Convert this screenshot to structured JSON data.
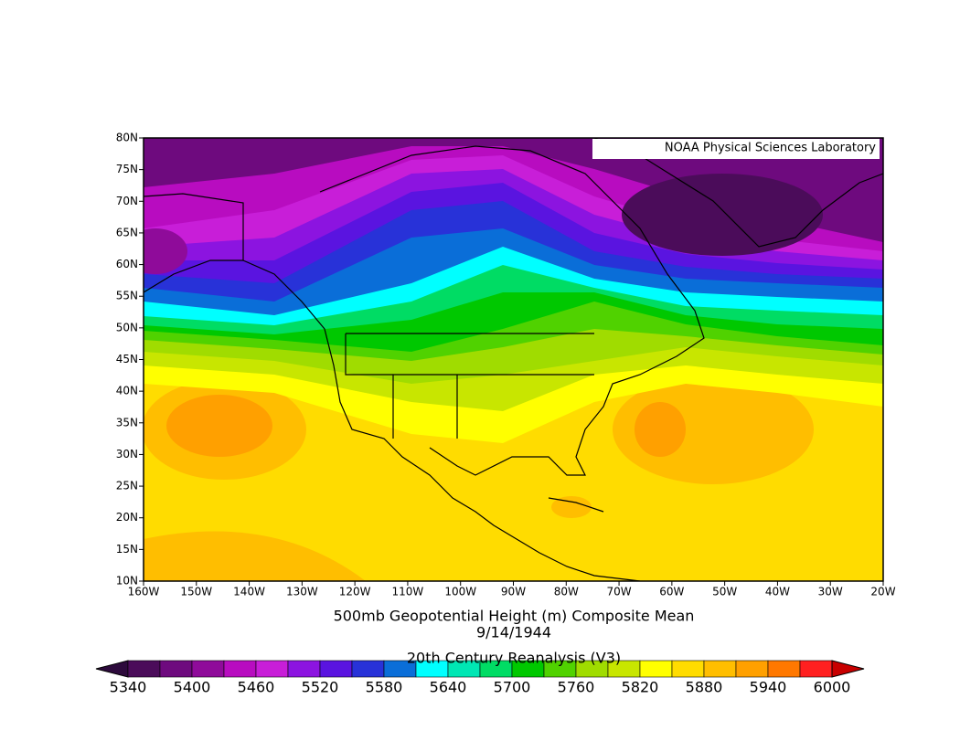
{
  "map": {
    "title": "500mb Geopotential Height (m) Composite Mean",
    "date": "9/14/1944",
    "source": "20th Century Reanalysis (V3)",
    "credit": "NOAA Physical Sciences Laboratory",
    "lat_ticks": [
      "10N",
      "15N",
      "20N",
      "25N",
      "30N",
      "35N",
      "40N",
      "45N",
      "50N",
      "55N",
      "60N",
      "65N",
      "70N",
      "75N",
      "80N"
    ],
    "lon_ticks": [
      "160W",
      "150W",
      "140W",
      "130W",
      "120W",
      "110W",
      "100W",
      "90W",
      "80W",
      "70W",
      "60W",
      "50W",
      "40W",
      "30W",
      "20W"
    ],
    "colorbar": {
      "labels": [
        5340,
        5400,
        5460,
        5520,
        5580,
        5640,
        5700,
        5760,
        5820,
        5880,
        5940,
        6000
      ],
      "colors": [
        "#4b0c5a",
        "#6e0a7e",
        "#8f0b9a",
        "#b80cc0",
        "#c81ed8",
        "#8c14e0",
        "#5a14e0",
        "#2832d8",
        "#0a6ed8",
        "#00ffff",
        "#00e6b4",
        "#00dc64",
        "#00c800",
        "#50d200",
        "#a0dc00",
        "#c8e600",
        "#ffff00",
        "#ffdc00",
        "#ffbe00",
        "#ffa000",
        "#ff7800",
        "#ff2020"
      ],
      "under_color": "#2d0a3c",
      "over_color": "#c80000"
    }
  }
}
